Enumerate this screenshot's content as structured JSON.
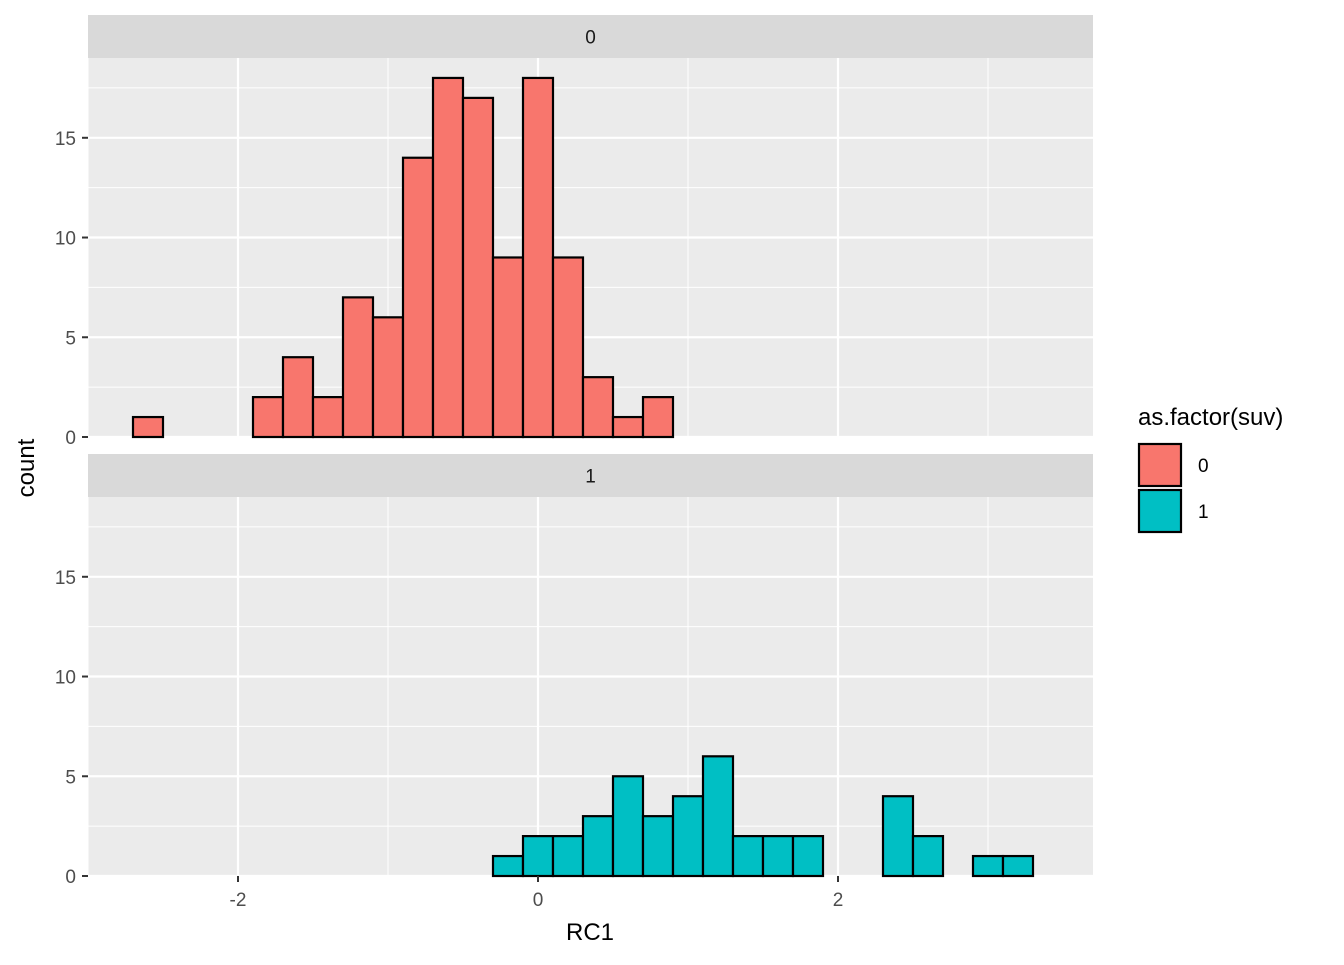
{
  "chart_data": {
    "type": "bar",
    "subtype": "faceted-histogram",
    "xlabel": "RC1",
    "ylabel": "count",
    "xlim": [
      -3.0,
      3.7
    ],
    "ylim": [
      0,
      19
    ],
    "x_ticks": [
      -2,
      0,
      2
    ],
    "y_ticks": [
      0,
      5,
      10,
      15
    ],
    "bin_width": 0.2,
    "bin_start": -2.7,
    "grid": true,
    "legend": {
      "title": "as.factor(suv)",
      "placement": "right",
      "items": [
        {
          "label": "0",
          "color": "#F8766D"
        },
        {
          "label": "1",
          "color": "#00BFC4"
        }
      ]
    },
    "facets": [
      {
        "label": "0",
        "color": "#F8766D",
        "counts": [
          1,
          0,
          0,
          0,
          2,
          4,
          2,
          7,
          6,
          14,
          18,
          17,
          9,
          18,
          9,
          3,
          1,
          2,
          0,
          0,
          0,
          0,
          0,
          0,
          0,
          0,
          0,
          0,
          0,
          0
        ]
      },
      {
        "label": "1",
        "color": "#00BFC4",
        "counts": [
          0,
          0,
          0,
          0,
          0,
          0,
          0,
          0,
          0,
          0,
          0,
          0,
          1,
          2,
          2,
          3,
          5,
          3,
          4,
          6,
          2,
          2,
          2,
          0,
          0,
          4,
          2,
          0,
          1,
          1
        ]
      }
    ]
  }
}
